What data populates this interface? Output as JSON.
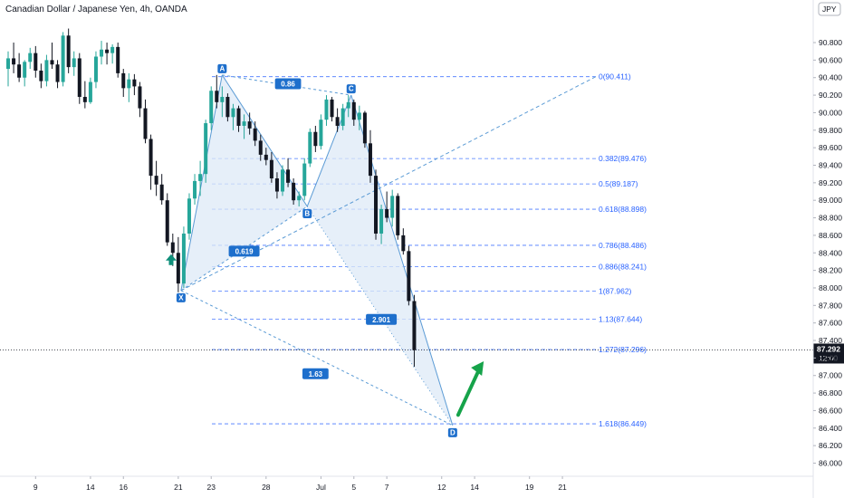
{
  "header": {
    "symbol_title": "Canadian Dollar / Japanese Yen, 4h, OANDA",
    "currency_badge": "JPY"
  },
  "colors": {
    "up": "#26a69a",
    "down": "#131722",
    "fib": "#2962ff",
    "pattern_fill": "#ddeaf7",
    "pattern_line": "#5b9bd5",
    "badge": "#1e6fcc",
    "green_arrow": "#16a34a",
    "teal_arrow": "#0f8f7a"
  },
  "chart_data": {
    "type": "candlestick",
    "ylim": [
      85.85,
      91.1
    ],
    "y_ticks": [
      86.0,
      86.2,
      86.4,
      86.6,
      86.8,
      87.0,
      87.2,
      87.4,
      87.6,
      87.8,
      88.0,
      88.2,
      88.4,
      88.6,
      88.8,
      89.0,
      89.2,
      89.4,
      89.6,
      89.8,
      90.0,
      90.2,
      90.4,
      90.6,
      90.8
    ],
    "x_ticks": [
      {
        "label": "9",
        "idx": 5
      },
      {
        "label": "14",
        "idx": 15
      },
      {
        "label": "16",
        "idx": 21
      },
      {
        "label": "21",
        "idx": 31
      },
      {
        "label": "23",
        "idx": 37
      },
      {
        "label": "28",
        "idx": 47
      },
      {
        "label": "Jul",
        "idx": 57
      },
      {
        "label": "5",
        "idx": 63
      },
      {
        "label": "7",
        "idx": 69
      },
      {
        "label": "12",
        "idx": 79
      },
      {
        "label": "14",
        "idx": 85
      },
      {
        "label": "19",
        "idx": 95
      },
      {
        "label": "21",
        "idx": 101
      }
    ],
    "current_price": {
      "label": "87.292",
      "value": 87.292,
      "countdown": "12:00"
    },
    "fib_levels": [
      {
        "label": "0(90.411)",
        "value": 90.411
      },
      {
        "label": "0.382(89.476)",
        "value": 89.476
      },
      {
        "label": "0.5(89.187)",
        "value": 89.187
      },
      {
        "label": "0.618(88.898)",
        "value": 88.898
      },
      {
        "label": "0.786(88.486)",
        "value": 88.486
      },
      {
        "label": "0.886(88.241)",
        "value": 88.241
      },
      {
        "label": "1(87.962)",
        "value": 87.962
      },
      {
        "label": "1.13(87.644)",
        "value": 87.644
      },
      {
        "label": "1.272(87.296)",
        "value": 87.296
      },
      {
        "label": "1.618(86.449)",
        "value": 86.449
      }
    ],
    "pattern_points": [
      {
        "label": "X",
        "idx": 31.5,
        "value": 87.97
      },
      {
        "label": "A",
        "idx": 39,
        "value": 90.43
      },
      {
        "label": "B",
        "idx": 54.5,
        "value": 88.93
      },
      {
        "label": "C",
        "idx": 62.5,
        "value": 90.2
      },
      {
        "label": "D",
        "idx": 81,
        "value": 86.43
      }
    ],
    "ratio_labels": [
      {
        "label": "0.86",
        "idx": 51,
        "value": 90.33
      },
      {
        "label": "0.619",
        "idx": 43,
        "value": 88.42
      },
      {
        "label": "2.901",
        "idx": 68,
        "value": 87.64
      },
      {
        "label": "1.63",
        "idx": 56,
        "value": 87.02
      }
    ],
    "candles": [
      [
        90.5,
        90.7,
        90.3,
        90.62
      ],
      [
        90.62,
        90.8,
        90.45,
        90.55
      ],
      [
        90.55,
        90.68,
        90.35,
        90.4
      ],
      [
        90.4,
        90.6,
        90.3,
        90.58
      ],
      [
        90.58,
        90.74,
        90.5,
        90.68
      ],
      [
        90.68,
        90.76,
        90.4,
        90.48
      ],
      [
        90.48,
        90.56,
        90.28,
        90.36
      ],
      [
        90.36,
        90.66,
        90.3,
        90.6
      ],
      [
        90.6,
        90.8,
        90.5,
        90.55
      ],
      [
        90.55,
        90.6,
        90.28,
        90.35
      ],
      [
        90.35,
        90.92,
        90.3,
        90.88
      ],
      [
        90.88,
        90.96,
        90.45,
        90.52
      ],
      [
        90.52,
        90.7,
        90.42,
        90.62
      ],
      [
        90.62,
        90.68,
        90.1,
        90.18
      ],
      [
        90.18,
        90.36,
        90.05,
        90.12
      ],
      [
        90.12,
        90.4,
        90.1,
        90.35
      ],
      [
        90.35,
        90.7,
        90.28,
        90.64
      ],
      [
        90.64,
        90.82,
        90.55,
        90.72
      ],
      [
        90.72,
        90.8,
        90.55,
        90.68
      ],
      [
        90.68,
        90.78,
        90.56,
        90.75
      ],
      [
        90.75,
        90.8,
        90.4,
        90.45
      ],
      [
        90.45,
        90.5,
        90.18,
        90.28
      ],
      [
        90.28,
        90.45,
        90.12,
        90.38
      ],
      [
        90.38,
        90.44,
        90.2,
        90.3
      ],
      [
        90.3,
        90.35,
        89.95,
        90.05
      ],
      [
        90.05,
        90.15,
        89.65,
        89.7
      ],
      [
        89.7,
        89.75,
        89.12,
        89.28
      ],
      [
        89.28,
        89.45,
        89.05,
        89.18
      ],
      [
        89.18,
        89.3,
        88.95,
        89.0
      ],
      [
        89.0,
        89.08,
        88.48,
        88.52
      ],
      [
        88.52,
        88.62,
        88.25,
        88.4
      ],
      [
        88.4,
        88.58,
        87.95,
        88.05
      ],
      [
        88.05,
        88.7,
        88.0,
        88.62
      ],
      [
        88.62,
        89.08,
        88.55,
        89.02
      ],
      [
        89.02,
        89.3,
        88.95,
        89.22
      ],
      [
        89.22,
        89.45,
        89.05,
        89.3
      ],
      [
        89.3,
        89.92,
        89.2,
        89.88
      ],
      [
        89.88,
        90.3,
        89.8,
        90.25
      ],
      [
        90.25,
        90.43,
        90.05,
        90.12
      ],
      [
        90.12,
        90.3,
        89.95,
        90.18
      ],
      [
        90.18,
        90.22,
        89.9,
        89.95
      ],
      [
        89.95,
        90.1,
        89.8,
        90.05
      ],
      [
        90.05,
        90.08,
        89.78,
        89.85
      ],
      [
        89.85,
        89.98,
        89.7,
        89.9
      ],
      [
        89.9,
        90.0,
        89.75,
        89.82
      ],
      [
        89.82,
        89.9,
        89.62,
        89.68
      ],
      [
        89.68,
        89.75,
        89.45,
        89.52
      ],
      [
        89.52,
        89.6,
        89.4,
        89.46
      ],
      [
        89.46,
        89.55,
        89.2,
        89.25
      ],
      [
        89.25,
        89.32,
        89.02,
        89.1
      ],
      [
        89.1,
        89.4,
        89.05,
        89.35
      ],
      [
        89.35,
        89.48,
        89.15,
        89.2
      ],
      [
        89.2,
        89.25,
        88.95,
        89.0
      ],
      [
        89.0,
        89.1,
        88.93,
        89.05
      ],
      [
        89.05,
        89.48,
        89.0,
        89.42
      ],
      [
        89.42,
        89.82,
        89.38,
        89.78
      ],
      [
        89.78,
        89.85,
        89.55,
        89.62
      ],
      [
        89.62,
        89.98,
        89.58,
        89.92
      ],
      [
        89.92,
        90.2,
        89.85,
        90.15
      ],
      [
        90.15,
        90.18,
        89.9,
        89.95
      ],
      [
        89.95,
        90.05,
        89.78,
        89.85
      ],
      [
        89.85,
        90.1,
        89.8,
        90.05
      ],
      [
        90.05,
        90.2,
        89.95,
        90.12
      ],
      [
        90.12,
        90.15,
        89.85,
        89.92
      ],
      [
        89.92,
        90.08,
        89.8,
        90.0
      ],
      [
        90.0,
        90.02,
        89.6,
        89.65
      ],
      [
        89.65,
        89.8,
        89.2,
        89.28
      ],
      [
        89.28,
        89.35,
        88.55,
        88.62
      ],
      [
        88.62,
        88.95,
        88.5,
        88.9
      ],
      [
        88.9,
        89.1,
        88.75,
        88.8
      ],
      [
        88.8,
        89.12,
        88.7,
        89.05
      ],
      [
        89.05,
        89.08,
        88.55,
        88.6
      ],
      [
        88.6,
        88.68,
        88.38,
        88.42
      ],
      [
        88.42,
        88.48,
        87.8,
        87.85
      ],
      [
        87.85,
        87.92,
        87.1,
        87.29
      ]
    ]
  }
}
